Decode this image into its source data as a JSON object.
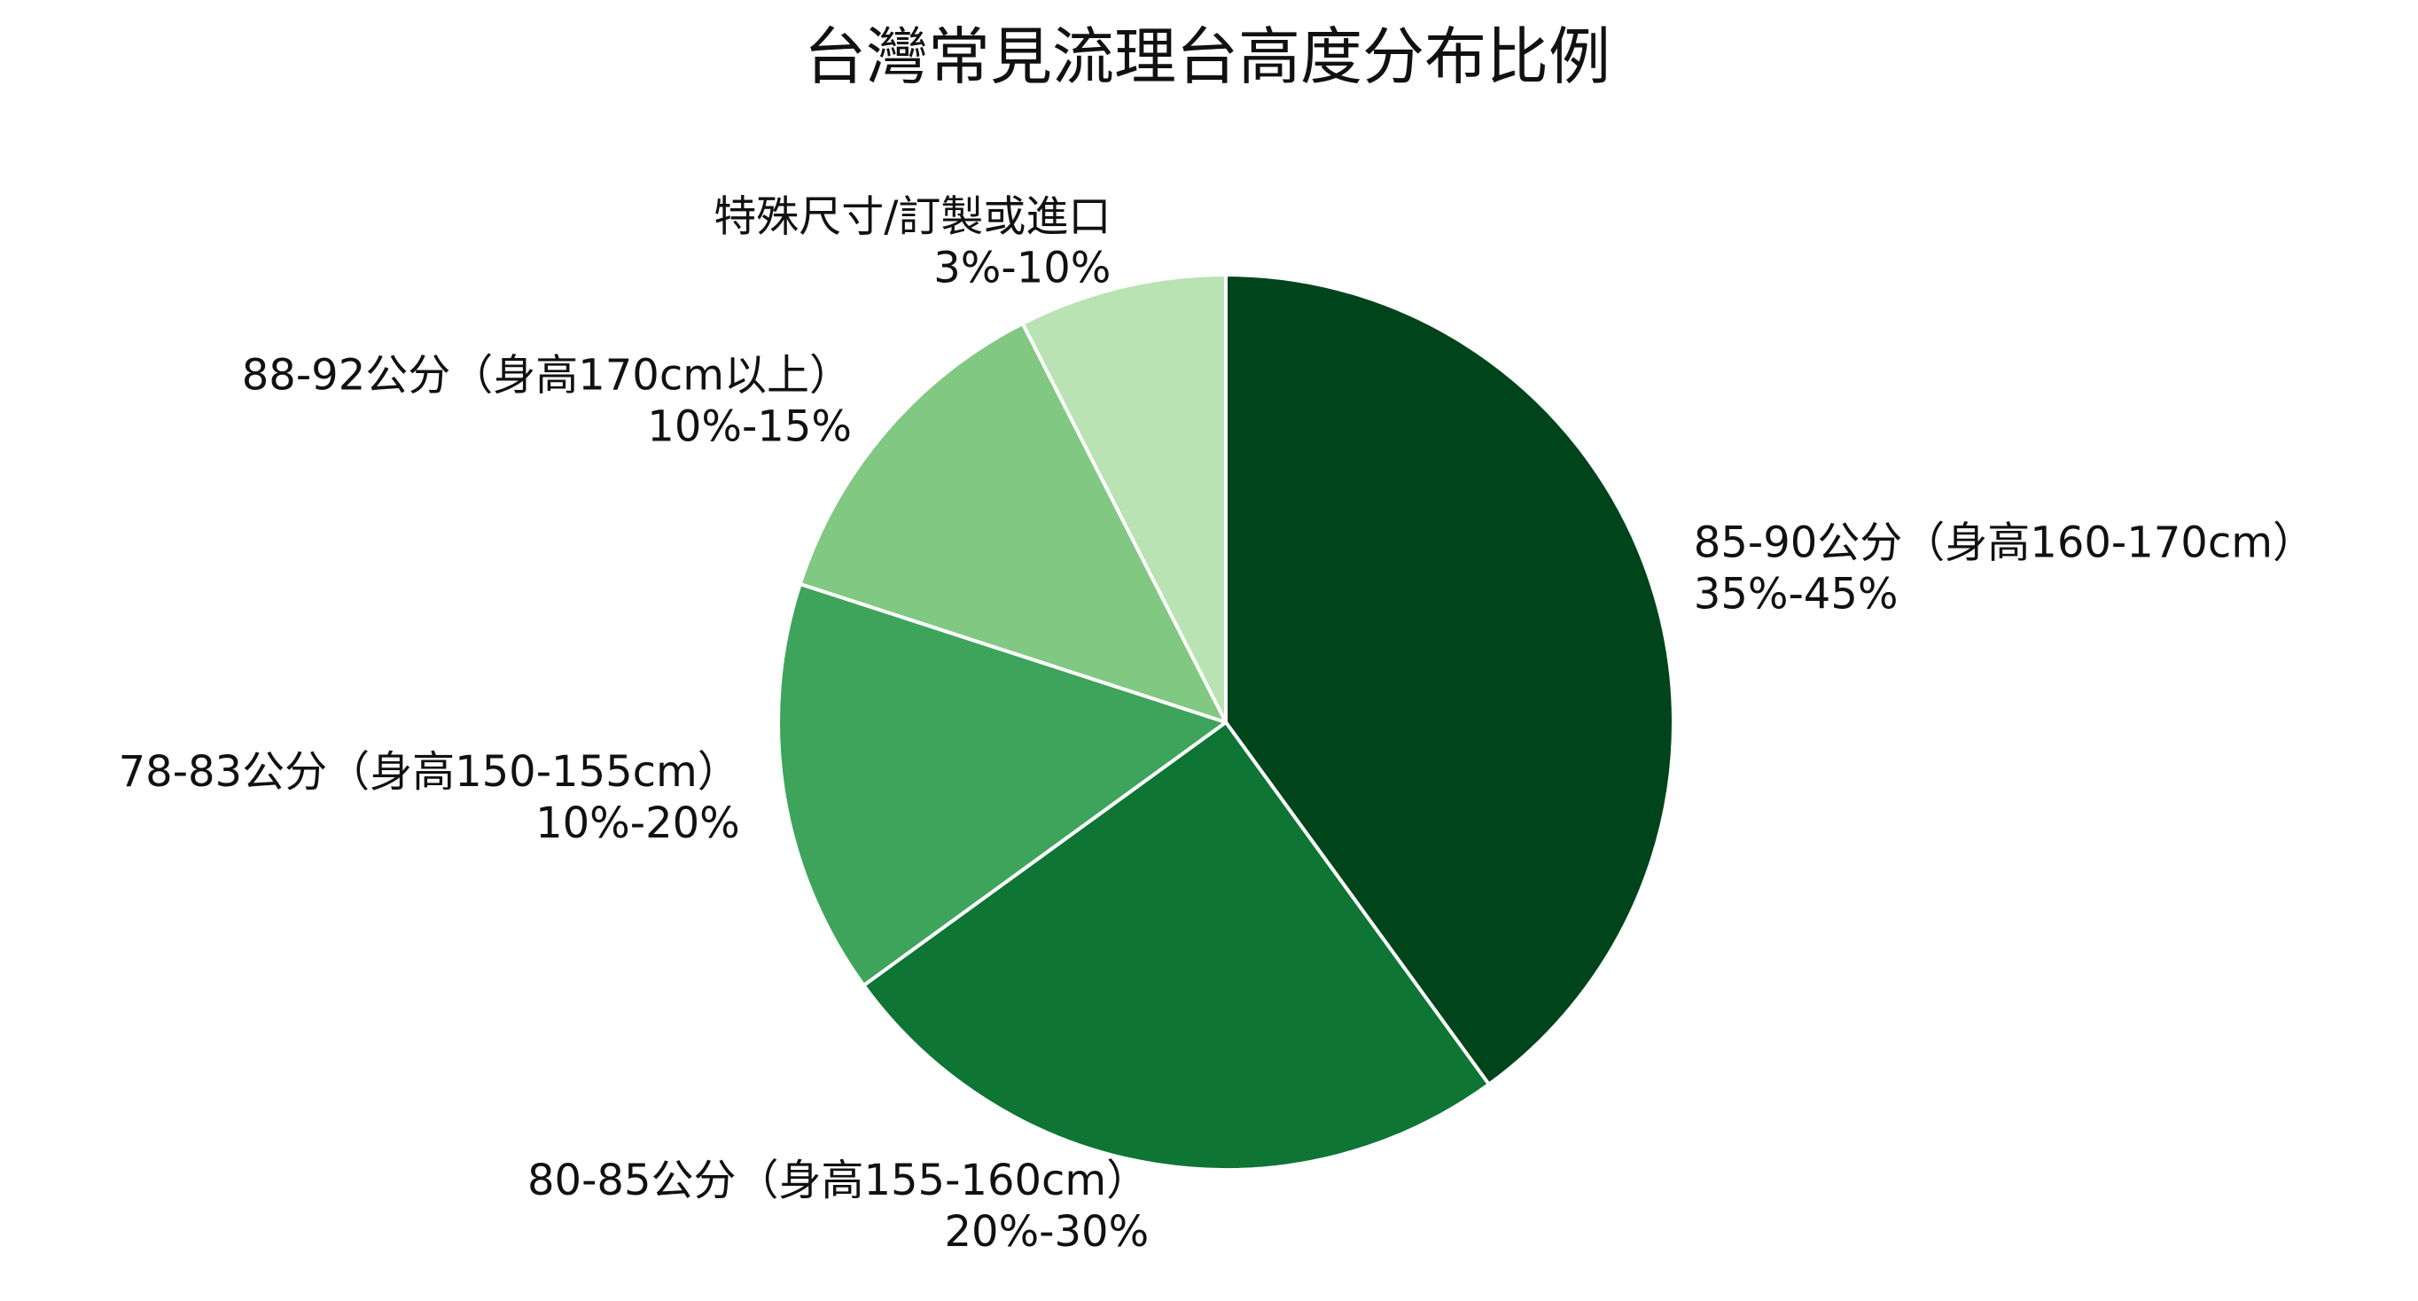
{
  "chart_data": {
    "type": "pie",
    "title": "台灣常見流理台高度分布比例",
    "start_angle_deg": 0,
    "direction": "clockwise",
    "slices": [
      {
        "label": "85-90公分（身高160-170cm）",
        "value_text": "35%-45%",
        "value": 40,
        "color": "#00441b"
      },
      {
        "label": "80-85公分（身高155-160cm）",
        "value_text": "20%-30%",
        "value": 25,
        "color": "#0e7535"
      },
      {
        "label": "78-83公分（身高150-155cm）",
        "value_text": "10%-20%",
        "value": 15,
        "color": "#3ea45b"
      },
      {
        "label": "88-92公分（身高170cm以上）",
        "value_text": "10%-15%",
        "value": 12.5,
        "color": "#81c882"
      },
      {
        "label": "特殊尺寸/訂製或進口",
        "value_text": "3%-10%",
        "value": 7.5,
        "color": "#b9e3b2"
      }
    ]
  }
}
